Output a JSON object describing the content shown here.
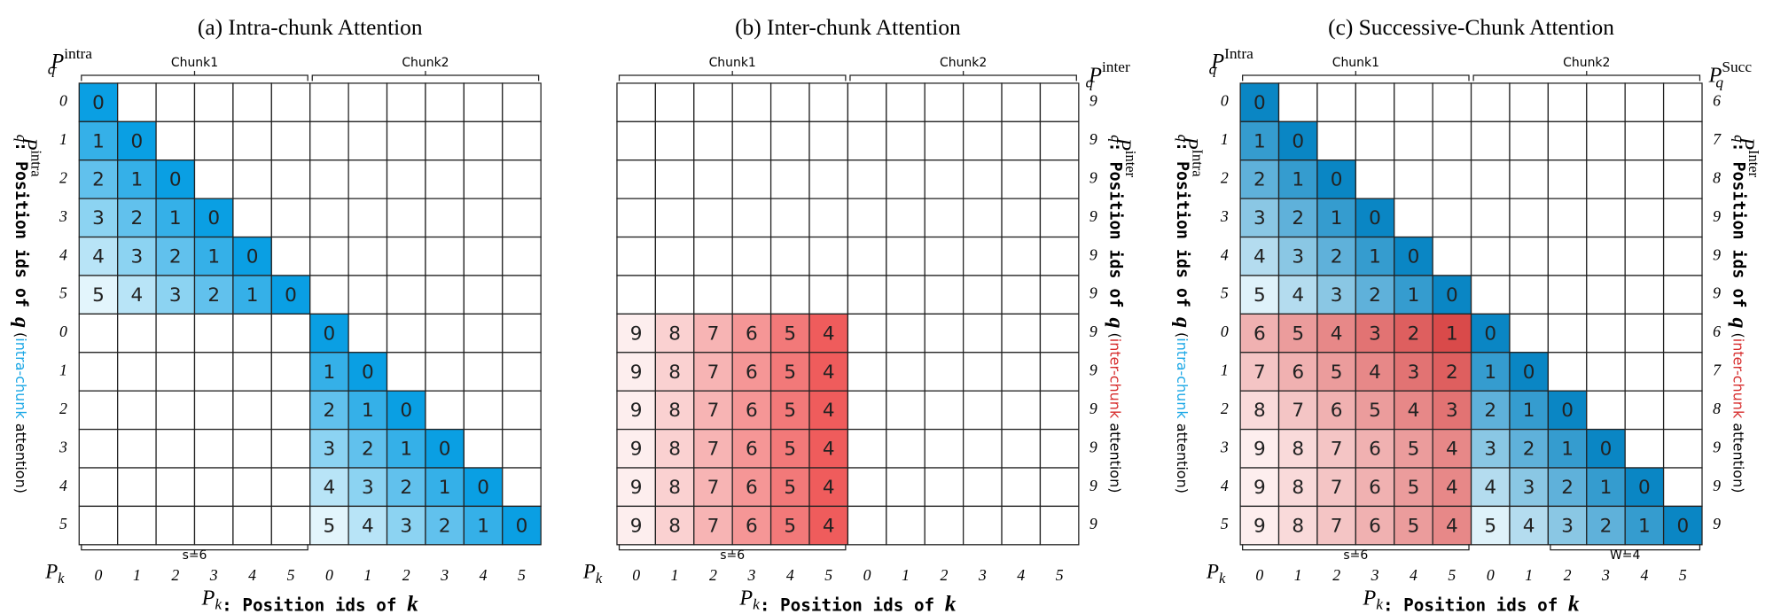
{
  "highlight_colors": {
    "intra": "#1aa7e6",
    "inter": "#d62a2a"
  },
  "panels": [
    {
      "title": "(a) Intra-chunk Attention",
      "chunks": [
        "Chunk1",
        "Chunk2"
      ],
      "span_label": "s=6",
      "q_label_left": {
        "base": "P",
        "sub": "q",
        "sup": "intra"
      },
      "row_labels_left": [
        0,
        1,
        2,
        3,
        4,
        5,
        0,
        1,
        2,
        3,
        4,
        5
      ],
      "q_axis_left": {
        "symbol": {
          "base": "P",
          "sub": "q",
          "sup": "intra"
        },
        "text": ": Position ids of ",
        "var": "q",
        "open": " (",
        "highlight": "intra-chunk",
        "rest": " attention)"
      },
      "k_label": {
        "base": "P",
        "sub": "k"
      },
      "col_labels": [
        0,
        1,
        2,
        3,
        4,
        5,
        0,
        1,
        2,
        3,
        4,
        5
      ],
      "k_axis": {
        "symbol": {
          "base": "P",
          "sub": "k"
        },
        "text": ": Position ids of ",
        "var": "k"
      },
      "colors": {
        "blue_near": "#0a9fe3",
        "blue_far": "#e3f5fc"
      },
      "cells": [
        [
          0,
          null,
          null,
          null,
          null,
          null,
          null,
          null,
          null,
          null,
          null,
          null
        ],
        [
          1,
          0,
          null,
          null,
          null,
          null,
          null,
          null,
          null,
          null,
          null,
          null
        ],
        [
          2,
          1,
          0,
          null,
          null,
          null,
          null,
          null,
          null,
          null,
          null,
          null
        ],
        [
          3,
          2,
          1,
          0,
          null,
          null,
          null,
          null,
          null,
          null,
          null,
          null
        ],
        [
          4,
          3,
          2,
          1,
          0,
          null,
          null,
          null,
          null,
          null,
          null,
          null
        ],
        [
          5,
          4,
          3,
          2,
          1,
          0,
          null,
          null,
          null,
          null,
          null,
          null
        ],
        [
          null,
          null,
          null,
          null,
          null,
          null,
          0,
          null,
          null,
          null,
          null,
          null
        ],
        [
          null,
          null,
          null,
          null,
          null,
          null,
          1,
          0,
          null,
          null,
          null,
          null
        ],
        [
          null,
          null,
          null,
          null,
          null,
          null,
          2,
          1,
          0,
          null,
          null,
          null
        ],
        [
          null,
          null,
          null,
          null,
          null,
          null,
          3,
          2,
          1,
          0,
          null,
          null
        ],
        [
          null,
          null,
          null,
          null,
          null,
          null,
          4,
          3,
          2,
          1,
          0,
          null
        ],
        [
          null,
          null,
          null,
          null,
          null,
          null,
          5,
          4,
          3,
          2,
          1,
          0
        ]
      ]
    },
    {
      "title": "(b) Inter-chunk Attention",
      "chunks": [
        "Chunk1",
        "Chunk2"
      ],
      "span_label": "s=6",
      "q_label_right": {
        "base": "P",
        "sub": "q",
        "sup": "inter"
      },
      "row_labels_right": [
        9,
        9,
        9,
        9,
        9,
        9,
        9,
        9,
        9,
        9,
        9,
        9
      ],
      "q_axis_right": {
        "symbol": {
          "base": "P",
          "sub": "q",
          "sup": "inter"
        },
        "text": ": Position ids of ",
        "var": "q",
        "open": " (",
        "highlight": "inter-chunk",
        "rest": " attention)"
      },
      "k_label": {
        "base": "P",
        "sub": "k"
      },
      "col_labels": [
        0,
        1,
        2,
        3,
        4,
        5,
        0,
        1,
        2,
        3,
        4,
        5
      ],
      "k_axis": {
        "symbol": {
          "base": "P",
          "sub": "k"
        },
        "text": ": Position ids of ",
        "var": "k"
      },
      "colors": {
        "red_near": "#ef5c5c",
        "red_far": "#fdeeee"
      },
      "cells": [
        [
          null,
          null,
          null,
          null,
          null,
          null,
          null,
          null,
          null,
          null,
          null,
          null
        ],
        [
          null,
          null,
          null,
          null,
          null,
          null,
          null,
          null,
          null,
          null,
          null,
          null
        ],
        [
          null,
          null,
          null,
          null,
          null,
          null,
          null,
          null,
          null,
          null,
          null,
          null
        ],
        [
          null,
          null,
          null,
          null,
          null,
          null,
          null,
          null,
          null,
          null,
          null,
          null
        ],
        [
          null,
          null,
          null,
          null,
          null,
          null,
          null,
          null,
          null,
          null,
          null,
          null
        ],
        [
          null,
          null,
          null,
          null,
          null,
          null,
          null,
          null,
          null,
          null,
          null,
          null
        ],
        [
          9,
          8,
          7,
          6,
          5,
          4,
          null,
          null,
          null,
          null,
          null,
          null
        ],
        [
          9,
          8,
          7,
          6,
          5,
          4,
          null,
          null,
          null,
          null,
          null,
          null
        ],
        [
          9,
          8,
          7,
          6,
          5,
          4,
          null,
          null,
          null,
          null,
          null,
          null
        ],
        [
          9,
          8,
          7,
          6,
          5,
          4,
          null,
          null,
          null,
          null,
          null,
          null
        ],
        [
          9,
          8,
          7,
          6,
          5,
          4,
          null,
          null,
          null,
          null,
          null,
          null
        ],
        [
          9,
          8,
          7,
          6,
          5,
          4,
          null,
          null,
          null,
          null,
          null,
          null
        ]
      ]
    },
    {
      "title": "(c) Successive-Chunk Attention",
      "chunks": [
        "Chunk1",
        "Chunk2"
      ],
      "span_label": "s=6",
      "window_label": "W=4",
      "q_label_left": {
        "base": "P",
        "sub": "q",
        "sup": "Intra"
      },
      "q_label_right": {
        "base": "P",
        "sub": "q",
        "sup": "Succ"
      },
      "row_labels_left": [
        0,
        1,
        2,
        3,
        4,
        5,
        0,
        1,
        2,
        3,
        4,
        5
      ],
      "row_labels_right": [
        6,
        7,
        8,
        9,
        9,
        9,
        6,
        7,
        8,
        9,
        9,
        9
      ],
      "q_axis_left": {
        "symbol": {
          "base": "P",
          "sub": "q",
          "sup": "Intra"
        },
        "text": ": Position ids of ",
        "var": "q",
        "open": " (",
        "highlight": "intra-chunk",
        "rest": " attention)"
      },
      "q_axis_right": {
        "symbol": {
          "base": "P",
          "sub": "q",
          "sup": "Inter"
        },
        "text": ": Position ids of ",
        "var": "q",
        "open": " (",
        "highlight": "inter-chunk",
        "rest": " attention)"
      },
      "k_label": {
        "base": "P",
        "sub": "k"
      },
      "col_labels": [
        0,
        1,
        2,
        3,
        4,
        5,
        0,
        1,
        2,
        3,
        4,
        5
      ],
      "k_axis": {
        "symbol": {
          "base": "P",
          "sub": "k"
        },
        "text": ": Position ids of ",
        "var": "k"
      },
      "colors": {
        "blue_near": "#0a86c4",
        "blue_far": "#dff2fa",
        "red_near": "#d94a4a",
        "red_far": "#fdeeee"
      },
      "cells": [
        [
          0,
          null,
          null,
          null,
          null,
          null,
          null,
          null,
          null,
          null,
          null,
          null
        ],
        [
          1,
          0,
          null,
          null,
          null,
          null,
          null,
          null,
          null,
          null,
          null,
          null
        ],
        [
          2,
          1,
          0,
          null,
          null,
          null,
          null,
          null,
          null,
          null,
          null,
          null
        ],
        [
          3,
          2,
          1,
          0,
          null,
          null,
          null,
          null,
          null,
          null,
          null,
          null
        ],
        [
          4,
          3,
          2,
          1,
          0,
          null,
          null,
          null,
          null,
          null,
          null,
          null
        ],
        [
          5,
          4,
          3,
          2,
          1,
          0,
          null,
          null,
          null,
          null,
          null,
          null
        ],
        [
          6,
          5,
          4,
          3,
          2,
          1,
          0,
          null,
          null,
          null,
          null,
          null
        ],
        [
          7,
          6,
          5,
          4,
          3,
          2,
          1,
          0,
          null,
          null,
          null,
          null
        ],
        [
          8,
          7,
          6,
          5,
          4,
          3,
          2,
          1,
          0,
          null,
          null,
          null
        ],
        [
          9,
          8,
          7,
          6,
          5,
          4,
          3,
          2,
          1,
          0,
          null,
          null
        ],
        [
          9,
          8,
          7,
          6,
          5,
          4,
          4,
          3,
          2,
          1,
          0,
          null
        ],
        [
          9,
          8,
          7,
          6,
          5,
          4,
          5,
          4,
          3,
          2,
          1,
          0
        ]
      ]
    }
  ]
}
